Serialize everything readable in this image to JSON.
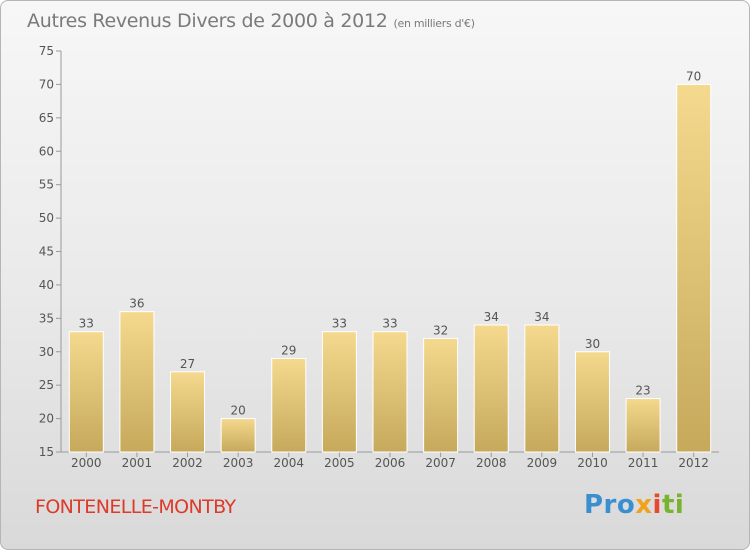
{
  "title": "Autres Revenus Divers de 2000 à 2012",
  "subtitle": "(en milliers d'€)",
  "commune": "FONTENELLE-MONTBY",
  "logo": {
    "p1": "Pro",
    "p2": "x",
    "p3": "i",
    "p4": "ti"
  },
  "colors": {
    "bar": "#ebcc7f",
    "bar_dark": "#c8ac5e",
    "commune": "#dd3a2a",
    "text": "#555555"
  },
  "chart_data": {
    "type": "bar",
    "categories": [
      "2000",
      "2001",
      "2002",
      "2003",
      "2004",
      "2005",
      "2006",
      "2007",
      "2008",
      "2009",
      "2010",
      "2011",
      "2012"
    ],
    "values": [
      33,
      36,
      27,
      20,
      29,
      33,
      33,
      32,
      34,
      34,
      30,
      23,
      70
    ],
    "ylim": [
      15,
      75
    ],
    "yticks": [
      15,
      20,
      25,
      30,
      35,
      40,
      45,
      50,
      55,
      60,
      65,
      70,
      75
    ],
    "grid": false,
    "xlabel": "",
    "ylabel": ""
  }
}
